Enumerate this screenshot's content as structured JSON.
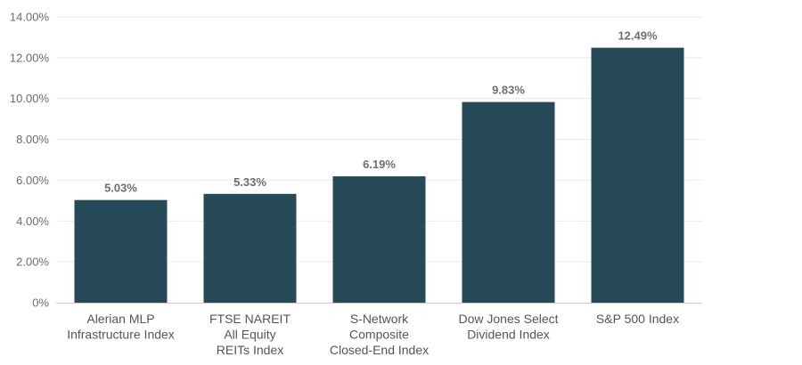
{
  "chart_data": {
    "type": "bar",
    "categories": [
      [
        "Alerian MLP",
        "Infrastructure Index"
      ],
      [
        "FTSE NAREIT",
        "All Equity",
        "REITs Index"
      ],
      [
        "S-Network",
        "Composite",
        "Closed-End Index"
      ],
      [
        "Dow Jones Select",
        "Dividend Index"
      ],
      [
        "S&P 500 Index"
      ]
    ],
    "values": [
      5.03,
      5.33,
      6.19,
      9.83,
      12.49
    ],
    "data_labels": [
      "5.03%",
      "5.33%",
      "6.19%",
      "9.83%",
      "12.49%"
    ],
    "yticks": [
      0,
      2,
      4,
      6,
      8,
      10,
      12,
      14
    ],
    "ytick_labels": [
      "0%",
      "2.00%",
      "4.00%",
      "6.00%",
      "8.00%",
      "10.00%",
      "12.00%",
      "14.00%"
    ],
    "ylim": [
      0,
      14
    ],
    "grid": true,
    "bar_color": "#264a57",
    "title": "",
    "xlabel": "",
    "ylabel": ""
  }
}
